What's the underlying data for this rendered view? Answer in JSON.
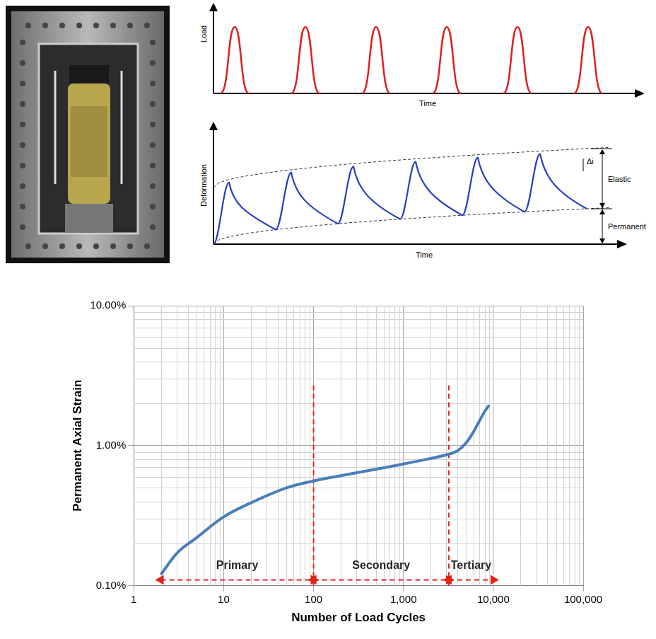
{
  "diagrams": {
    "load_vs_time": {
      "x_label": "Time",
      "y_label": "Load"
    },
    "deformation_vs_time": {
      "x_label": "Time",
      "y_label": "Deformation",
      "labels": {
        "increment": "Δi",
        "elastic": "Elastic",
        "permanent": "Permanent"
      }
    }
  },
  "chart_data": {
    "type": "line",
    "x_label": "Number of Load Cycles",
    "y_label": "Permanent Axial Strain",
    "log": true,
    "grid": true,
    "xlim": [
      1,
      100000
    ],
    "xticks": [
      1,
      10,
      100,
      {
        "value": 1000,
        "label": "1,000"
      },
      {
        "value": 10000,
        "label": "10,000"
      },
      {
        "value": 100000,
        "label": "100,000"
      }
    ],
    "ylim": [
      0.1,
      10
    ],
    "yticks": [
      {
        "value": 0.1,
        "label": "0.10%"
      },
      {
        "value": 1,
        "label": "1.00%"
      },
      {
        "value": 10,
        "label": "10.00%"
      }
    ],
    "x": [
      2,
      3,
      5,
      10,
      20,
      50,
      100,
      200,
      500,
      1000,
      2000,
      3000,
      4000,
      5000,
      6000,
      7000,
      8000,
      9000
    ],
    "values": [
      0.12,
      0.17,
      0.22,
      0.31,
      0.39,
      0.5,
      0.56,
      0.61,
      0.68,
      0.74,
      0.81,
      0.86,
      0.92,
      1.05,
      1.25,
      1.5,
      1.75,
      1.95
    ],
    "color": "#4a7ebb",
    "line_style": "solid",
    "marker": "none",
    "boundaries": [
      {
        "x": 100,
        "y": [
          0.1,
          2.7
        ],
        "line_style": "dashed"
      },
      {
        "x": 3200,
        "y": [
          0.1,
          2.7
        ],
        "line_style": "dashed"
      }
    ],
    "phases": [
      {
        "label": "Primary",
        "start": 2,
        "end": 100
      },
      {
        "label": "Secondary",
        "start": 100,
        "end": 3200
      },
      {
        "label": "Tertiary",
        "start": 3200,
        "end": 10000
      }
    ],
    "phase_arrow_y": 0.11
  }
}
